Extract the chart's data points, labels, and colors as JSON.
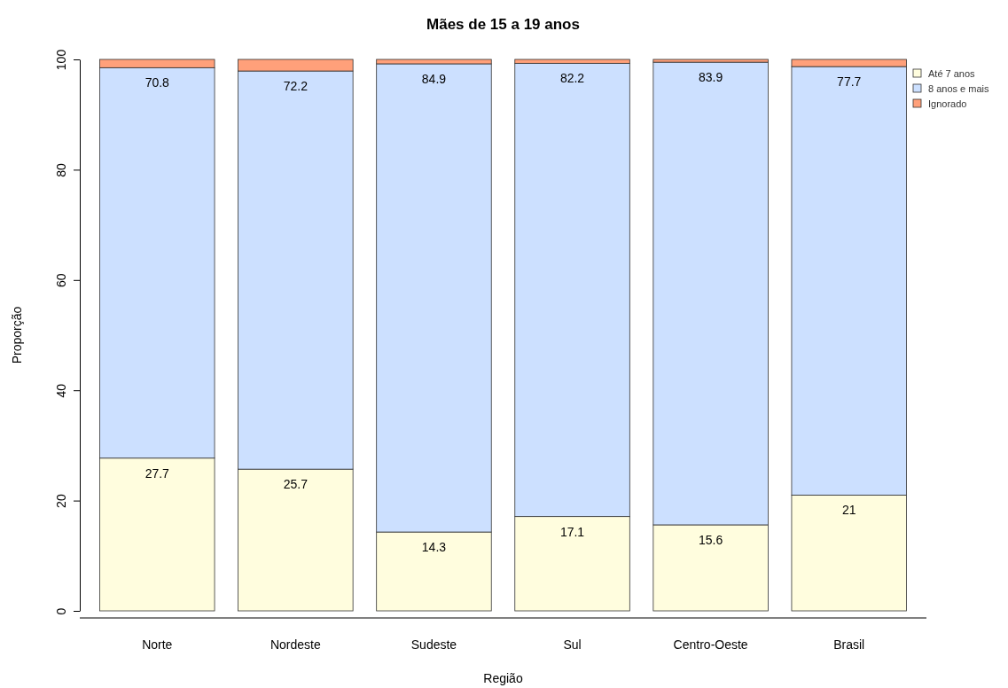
{
  "chart_data": {
    "type": "bar",
    "title": "Mães de 15 a 19 anos",
    "xlabel": "Região",
    "ylabel": "Proporção",
    "categories": [
      "Norte",
      "Nordeste",
      "Sudeste",
      "Sul",
      "Centro-Oeste",
      "Brasil"
    ],
    "stacked": true,
    "ylim": [
      0,
      100
    ],
    "yticks": [
      0,
      20,
      40,
      60,
      80,
      100
    ],
    "legend": "top right",
    "series": [
      {
        "name": "Até 7 anos",
        "color": "#fffdde",
        "values": [
          27.7,
          25.7,
          14.3,
          17.1,
          15.6,
          21
        ],
        "value_labels": [
          "27.7",
          "25.7",
          "14.3",
          "17.1",
          "15.6",
          "21"
        ]
      },
      {
        "name": "8 anos e mais",
        "color": "#cce0ff",
        "values": [
          70.8,
          72.2,
          84.9,
          82.2,
          83.9,
          77.7
        ],
        "value_labels": [
          "70.8",
          "72.2",
          "84.9",
          "82.2",
          "83.9",
          "77.7"
        ]
      },
      {
        "name": "Ignorado",
        "color": "#ffa07a",
        "values": [
          1.5,
          2.1,
          0.8,
          0.7,
          0.5,
          1.3
        ]
      }
    ]
  }
}
